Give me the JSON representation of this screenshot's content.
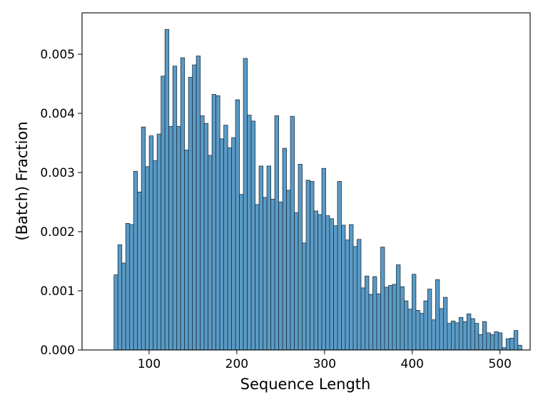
{
  "chart_data": {
    "type": "bar",
    "title": "",
    "xlabel": "Sequence Length",
    "ylabel": "(Batch) Fraction",
    "xlim": [
      23.6,
      534.4
    ],
    "ylim": [
      0,
      0.0057
    ],
    "xticks": [
      100,
      200,
      300,
      400,
      500
    ],
    "yticks": [
      "0.000",
      "0.001",
      "0.002",
      "0.003",
      "0.004",
      "0.005"
    ],
    "bin_start": 60,
    "bin_width": 4.47,
    "values": [
      0.00127,
      0.00178,
      0.00147,
      0.00214,
      0.00212,
      0.00302,
      0.00267,
      0.00377,
      0.0031,
      0.00362,
      0.0032,
      0.00365,
      0.00463,
      0.00542,
      0.00378,
      0.0048,
      0.00378,
      0.00494,
      0.00338,
      0.00461,
      0.00482,
      0.00497,
      0.00396,
      0.00383,
      0.00329,
      0.00432,
      0.0043,
      0.00357,
      0.0038,
      0.00342,
      0.00359,
      0.00423,
      0.00263,
      0.00493,
      0.00397,
      0.00387,
      0.00246,
      0.00311,
      0.00258,
      0.00311,
      0.00255,
      0.00396,
      0.0025,
      0.00341,
      0.0027,
      0.00395,
      0.00232,
      0.00314,
      0.00181,
      0.00287,
      0.00285,
      0.00235,
      0.00229,
      0.00307,
      0.00227,
      0.00222,
      0.0021,
      0.00285,
      0.00211,
      0.00186,
      0.00212,
      0.00175,
      0.00187,
      0.00105,
      0.00125,
      0.00094,
      0.00124,
      0.00095,
      0.00174,
      0.00106,
      0.00109,
      0.00111,
      0.00144,
      0.00107,
      0.00083,
      0.00069,
      0.00128,
      0.00067,
      0.00062,
      0.00083,
      0.00103,
      0.00051,
      0.00119,
      0.0007,
      0.00089,
      0.00045,
      0.00049,
      0.00046,
      0.00055,
      0.00048,
      0.00061,
      0.00053,
      0.00045,
      0.00026,
      0.00048,
      0.00029,
      0.00026,
      0.00031,
      0.00029,
      4e-05,
      0.00019,
      0.0002,
      0.00033,
      8e-05
    ],
    "bar_color": "#5a9bc6",
    "bar_edge_color": "#1f3140",
    "grid": false,
    "legend": "none"
  }
}
